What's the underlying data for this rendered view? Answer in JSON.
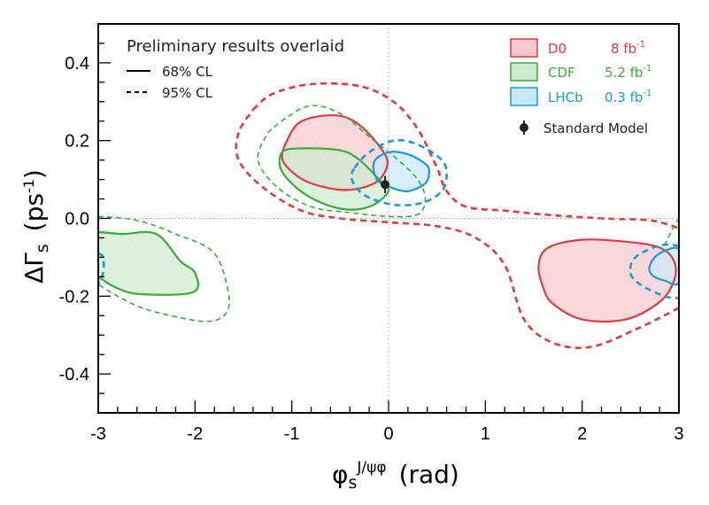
{
  "chart_data": {
    "type": "contour",
    "title": "Preliminary results overlaid",
    "xlabel": {
      "main": "φ",
      "sub": "s",
      "sup": "J/ψφ",
      "unit": "(rad)"
    },
    "ylabel": {
      "main": "ΔΓ",
      "sub": "s",
      "unit_pre": "(ps",
      "unit_sup": "-1",
      "unit_post": ")"
    },
    "xlim": [
      -3,
      3
    ],
    "ylim": [
      -0.5,
      0.5
    ],
    "xticks": [
      -3,
      -2,
      -1,
      0,
      1,
      2,
      3
    ],
    "yticks": [
      -0.4,
      -0.2,
      0.0,
      0.2,
      0.4
    ],
    "ytick_labels": [
      "-0.4",
      "-0.2",
      "0.0",
      "0.2",
      "0.4"
    ],
    "guide_lines": {
      "x": 0,
      "y": 0,
      "style": "dotted"
    },
    "cl_legend": [
      {
        "style": "solid",
        "label": "68% CL"
      },
      {
        "style": "dashed",
        "label": "95% CL"
      }
    ],
    "legend_position": "top-right",
    "series": [
      {
        "name": "D0",
        "lumi": "8 fb",
        "lumi_sup": "-1",
        "color": "#e0393e",
        "fill": "#f7c9cf",
        "contours": [
          {
            "cl": "68%",
            "closed": true,
            "points": [
              [
                -1.05,
                0.2
              ],
              [
                -0.9,
                0.25
              ],
              [
                -0.55,
                0.265
              ],
              [
                -0.3,
                0.24
              ],
              [
                -0.05,
                0.17
              ],
              [
                -0.02,
                0.13
              ],
              [
                -0.15,
                0.09
              ],
              [
                -0.45,
                0.073
              ],
              [
                -0.8,
                0.09
              ],
              [
                -1.0,
                0.12
              ],
              [
                -1.1,
                0.155
              ],
              [
                -1.05,
                0.2
              ]
            ]
          },
          {
            "cl": "68%",
            "closed": true,
            "points": [
              [
                1.55,
                -0.12
              ],
              [
                1.65,
                -0.075
              ],
              [
                2.0,
                -0.055
              ],
              [
                2.45,
                -0.06
              ],
              [
                2.8,
                -0.075
              ],
              [
                2.95,
                -0.11
              ],
              [
                2.95,
                -0.16
              ],
              [
                2.8,
                -0.215
              ],
              [
                2.45,
                -0.26
              ],
              [
                2.0,
                -0.26
              ],
              [
                1.7,
                -0.22
              ],
              [
                1.6,
                -0.18
              ],
              [
                1.55,
                -0.12
              ]
            ]
          },
          {
            "cl": "95%",
            "closed": false,
            "points": [
              [
                -1.4,
                0.28
              ],
              [
                -1.2,
                0.32
              ],
              [
                -0.8,
                0.345
              ],
              [
                -0.3,
                0.34
              ],
              [
                0.05,
                0.3
              ],
              [
                0.3,
                0.23
              ],
              [
                0.5,
                0.13
              ],
              [
                0.6,
                0.07
              ],
              [
                0.8,
                0.03
              ],
              [
                1.2,
                0.02
              ],
              [
                1.6,
                0.01
              ],
              [
                2.2,
                0.0
              ],
              [
                2.7,
                -0.005
              ],
              [
                3.0,
                -0.025
              ]
            ]
          },
          {
            "cl": "95%",
            "closed": false,
            "points": [
              [
                3.0,
                -0.23
              ],
              [
                2.6,
                -0.28
              ],
              [
                2.1,
                -0.33
              ],
              [
                1.7,
                -0.32
              ],
              [
                1.4,
                -0.26
              ],
              [
                1.2,
                -0.12
              ],
              [
                0.9,
                -0.05
              ],
              [
                0.5,
                -0.02
              ],
              [
                0.0,
                -0.01
              ],
              [
                -0.5,
                0.0
              ],
              [
                -0.9,
                0.02
              ],
              [
                -1.3,
                0.08
              ],
              [
                -1.55,
                0.15
              ],
              [
                -1.55,
                0.22
              ],
              [
                -1.4,
                0.28
              ]
            ]
          }
        ]
      },
      {
        "name": "CDF",
        "lumi": "5.2 fb",
        "lumi_sup": "-1",
        "color": "#3aaa3a",
        "fill": "#cdeccd",
        "contours": [
          {
            "cl": "68%",
            "closed": true,
            "points": [
              [
                -1.1,
                0.17
              ],
              [
                -0.9,
                0.18
              ],
              [
                -0.5,
                0.175
              ],
              [
                -0.3,
                0.15
              ],
              [
                -0.1,
                0.1
              ],
              [
                0.0,
                0.07
              ],
              [
                -0.2,
                0.03
              ],
              [
                -0.5,
                0.025
              ],
              [
                -0.85,
                0.06
              ],
              [
                -1.1,
                0.12
              ],
              [
                -1.1,
                0.17
              ]
            ]
          },
          {
            "cl": "68%",
            "closed": false,
            "points": [
              [
                -3.0,
                -0.035
              ],
              [
                -2.75,
                -0.04
              ],
              [
                -2.4,
                -0.04
              ],
              [
                -2.15,
                -0.11
              ],
              [
                -2.0,
                -0.14
              ],
              [
                -2.02,
                -0.19
              ],
              [
                -2.55,
                -0.195
              ],
              [
                -2.8,
                -0.18
              ],
              [
                -3.0,
                -0.15
              ]
            ]
          },
          {
            "cl": "95%",
            "closed": false,
            "points": [
              [
                -1.25,
                0.22
              ],
              [
                -1.05,
                0.26
              ],
              [
                -0.8,
                0.29
              ],
              [
                -0.5,
                0.27
              ],
              [
                -0.2,
                0.21
              ],
              [
                0.1,
                0.15
              ],
              [
                0.3,
                0.1
              ],
              [
                0.38,
                0.05
              ],
              [
                0.3,
                0.01
              ],
              [
                0.0,
                0.005
              ],
              [
                -0.4,
                0.015
              ],
              [
                -0.8,
                0.03
              ],
              [
                -1.15,
                0.08
              ],
              [
                -1.35,
                0.15
              ],
              [
                -1.25,
                0.22
              ]
            ]
          },
          {
            "cl": "95%",
            "closed": false,
            "points": [
              [
                -3.0,
                0.005
              ],
              [
                -2.6,
                -0.005
              ],
              [
                -2.2,
                -0.04
              ],
              [
                -1.8,
                -0.09
              ],
              [
                -1.65,
                -0.2
              ],
              [
                -1.7,
                -0.25
              ],
              [
                -1.9,
                -0.265
              ],
              [
                -2.25,
                -0.25
              ],
              [
                -2.55,
                -0.23
              ],
              [
                -2.8,
                -0.2
              ],
              [
                -3.0,
                -0.17
              ]
            ]
          },
          {
            "cl": "95%",
            "closed": false,
            "points": [
              [
                2.85,
                -0.07
              ],
              [
                2.95,
                -0.02
              ],
              [
                3.0,
                0.0
              ]
            ]
          }
        ]
      },
      {
        "name": "LHCb",
        "lumi": "0.3 fb",
        "lumi_sup": "-1",
        "color": "#1a9ad6",
        "fill": "#c6e9f7",
        "contours": [
          {
            "cl": "68%",
            "closed": true,
            "points": [
              [
                -0.15,
                0.145
              ],
              [
                0.0,
                0.17
              ],
              [
                0.2,
                0.165
              ],
              [
                0.38,
                0.14
              ],
              [
                0.42,
                0.12
              ],
              [
                0.38,
                0.09
              ],
              [
                0.2,
                0.07
              ],
              [
                0.02,
                0.08
              ],
              [
                -0.12,
                0.1
              ],
              [
                -0.15,
                0.145
              ]
            ]
          },
          {
            "cl": "68%",
            "closed": true,
            "points": [
              [
                2.7,
                -0.12
              ],
              [
                2.8,
                -0.09
              ],
              [
                3.0,
                -0.08
              ],
              [
                3.0,
                -0.165
              ],
              [
                2.85,
                -0.16
              ],
              [
                2.72,
                -0.145
              ],
              [
                2.7,
                -0.12
              ]
            ]
          },
          {
            "cl": "95%",
            "closed": true,
            "points": [
              [
                -0.35,
                0.13
              ],
              [
                -0.2,
                0.17
              ],
              [
                0.05,
                0.2
              ],
              [
                0.3,
                0.19
              ],
              [
                0.55,
                0.15
              ],
              [
                0.6,
                0.11
              ],
              [
                0.55,
                0.07
              ],
              [
                0.35,
                0.04
              ],
              [
                0.05,
                0.035
              ],
              [
                -0.25,
                0.06
              ],
              [
                -0.38,
                0.1
              ],
              [
                -0.35,
                0.13
              ]
            ]
          },
          {
            "cl": "95%",
            "closed": false,
            "points": [
              [
                3.0,
                -0.07
              ],
              [
                2.8,
                -0.07
              ],
              [
                2.55,
                -0.1
              ],
              [
                2.5,
                -0.14
              ],
              [
                2.6,
                -0.17
              ],
              [
                2.85,
                -0.2
              ],
              [
                3.0,
                -0.205
              ]
            ]
          },
          {
            "cl": "95%",
            "closed": false,
            "points": [
              [
                -3.0,
                -0.09
              ],
              [
                -2.95,
                -0.1
              ],
              [
                -2.95,
                -0.14
              ],
              [
                -3.0,
                -0.17
              ]
            ]
          }
        ]
      }
    ],
    "standard_model": {
      "label": "Standard Model",
      "x": -0.036,
      "y": 0.087,
      "yerr": 0.022,
      "color": "#222222"
    }
  }
}
